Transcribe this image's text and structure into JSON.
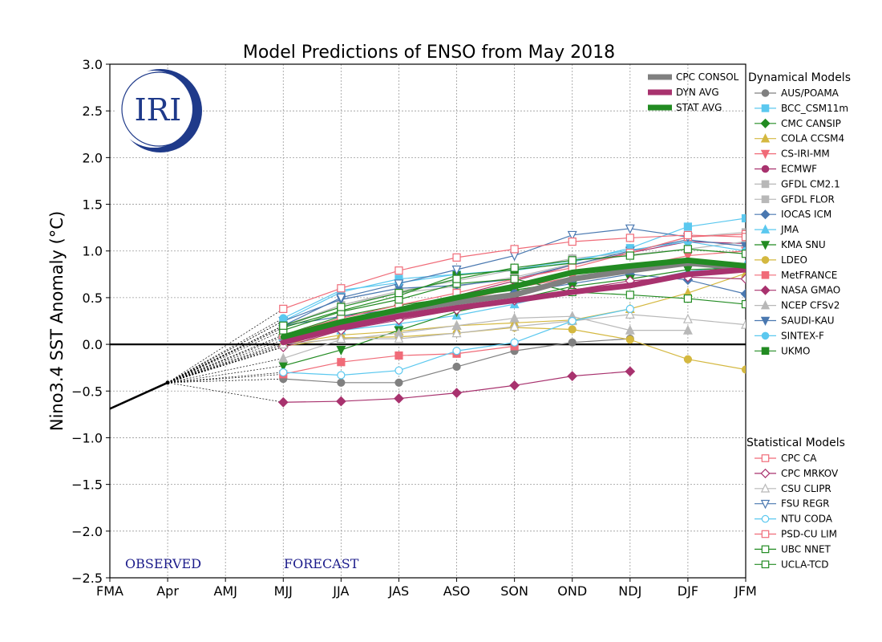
{
  "chart_data": {
    "type": "line",
    "title": "Model Predictions of ENSO from May 2018",
    "ylabel": "Nino3.4 SST Anomaly (°C)",
    "xlabel": "",
    "categories": [
      "FMA",
      "Apr",
      "AMJ",
      "MJJ",
      "JJA",
      "JAS",
      "ASO",
      "SON",
      "OND",
      "NDJ",
      "DJF",
      "JFM"
    ],
    "ylim": [
      -2.5,
      3.0
    ],
    "yticks": [
      "3.0",
      "2.5",
      "2.0",
      "1.5",
      "1.0",
      "0.5",
      "0.0",
      "−0.5",
      "−1.0",
      "−1.5",
      "−2.0",
      "−2.5"
    ],
    "ytick_values": [
      3.0,
      2.5,
      2.0,
      1.5,
      1.0,
      0.5,
      0.0,
      -0.5,
      -1.0,
      -1.5,
      -2.0,
      -2.5
    ],
    "grid": true,
    "observed": {
      "label": "OBSERVED",
      "x": [
        0,
        1
      ],
      "values": [
        -0.69,
        -0.41
      ]
    },
    "forecast_label": "FORECAST",
    "logo_text": "IRI",
    "averages_legend": [
      {
        "name": "CPC CONSOL",
        "color": "#808080",
        "width": 7,
        "start": 3,
        "values": [
          0.05,
          0.22,
          0.36,
          0.45,
          0.53,
          0.7,
          0.79,
          0.87,
          0.82
        ]
      },
      {
        "name": "DYN AVG",
        "color": "#a8326e",
        "width": 7,
        "start": 3,
        "values": [
          0.02,
          0.18,
          0.3,
          0.39,
          0.47,
          0.56,
          0.63,
          0.75,
          0.8
        ]
      },
      {
        "name": "STAT AVG",
        "color": "#228b22",
        "width": 7,
        "start": 3,
        "values": [
          0.08,
          0.24,
          0.37,
          0.5,
          0.62,
          0.77,
          0.84,
          0.9,
          0.84
        ]
      }
    ],
    "dynamical_header": "Dynamical Models",
    "dynamical": [
      {
        "name": "AUS/POAMA",
        "color": "#808080",
        "marker": "circle",
        "fill": true,
        "start": 3,
        "values": [
          -0.37,
          -0.41,
          -0.41,
          -0.24,
          -0.07,
          0.02,
          0.06,
          null,
          null
        ]
      },
      {
        "name": "BCC_CSM11m",
        "color": "#5bc8ef",
        "marker": "square",
        "fill": true,
        "start": 3,
        "values": [
          0.25,
          0.56,
          0.7,
          0.75,
          0.79,
          0.88,
          1.03,
          1.26,
          1.35
        ]
      },
      {
        "name": "CMC CANSIP",
        "color": "#228b22",
        "marker": "diamond",
        "fill": true,
        "start": 3,
        "values": [
          0.1,
          0.3,
          0.42,
          0.5,
          0.58,
          0.68,
          0.79,
          0.88,
          0.82
        ]
      },
      {
        "name": "COLA CCSM4",
        "color": "#d4b840",
        "marker": "triangle",
        "fill": true,
        "start": 3,
        "values": [
          0.0,
          0.1,
          0.14,
          0.2,
          0.23,
          0.26,
          0.38,
          0.55,
          0.76
        ]
      },
      {
        "name": "CS-IRI-MM",
        "color": "#f06b78",
        "marker": "tridown",
        "fill": true,
        "start": 3,
        "values": [
          0.02,
          0.2,
          0.33,
          0.46,
          0.6,
          0.72,
          0.82,
          0.95,
          1.0
        ]
      },
      {
        "name": "ECMWF",
        "color": "#a8326e",
        "marker": "circle",
        "fill": true,
        "start": 3,
        "values": [
          0.05,
          0.22,
          0.36,
          0.52,
          0.68,
          0.85,
          0.98,
          1.1,
          1.08
        ]
      },
      {
        "name": "GFDL CM2.1",
        "color": "#b8b8b8",
        "marker": "square",
        "fill": true,
        "start": 3,
        "values": [
          0.18,
          0.42,
          0.57,
          0.68,
          0.8,
          0.92,
          0.98,
          1.15,
          1.2
        ]
      },
      {
        "name": "GFDL FLOR",
        "color": "#b8b8b8",
        "marker": "square",
        "fill": true,
        "start": 3,
        "values": [
          0.2,
          0.42,
          0.55,
          0.62,
          0.72,
          0.86,
          0.96,
          1.02,
          1.1
        ]
      },
      {
        "name": "IOCAS ICM",
        "color": "#4a78b0",
        "marker": "diamond",
        "fill": true,
        "start": 3,
        "values": [
          0.2,
          0.3,
          0.38,
          0.45,
          0.55,
          0.65,
          0.75,
          0.69,
          0.54
        ]
      },
      {
        "name": "JMA",
        "color": "#5bc8ef",
        "marker": "triangle",
        "fill": true,
        "start": 3,
        "values": [
          0.08,
          0.15,
          0.22,
          0.31,
          0.43,
          0.58,
          0.65,
          0.78,
          0.85
        ]
      },
      {
        "name": "KMA SNU",
        "color": "#228b22",
        "marker": "tridown",
        "fill": true,
        "start": 3,
        "values": [
          -0.23,
          -0.06,
          0.15,
          0.35,
          0.48,
          0.62,
          0.7,
          0.8,
          0.82
        ]
      },
      {
        "name": "LDEO",
        "color": "#d4b840",
        "marker": "circle",
        "fill": true,
        "start": 3,
        "values": [
          -0.02,
          0.07,
          0.08,
          0.12,
          0.18,
          0.16,
          0.05,
          -0.16,
          -0.27
        ]
      },
      {
        "name": "MetFRANCE",
        "color": "#f06b78",
        "marker": "square",
        "fill": true,
        "start": 3,
        "values": [
          -0.32,
          -0.19,
          -0.12,
          -0.1,
          -0.02,
          null,
          null,
          null,
          null
        ]
      },
      {
        "name": "NASA GMAO",
        "color": "#a8326e",
        "marker": "diamond",
        "fill": true,
        "start": 3,
        "values": [
          -0.62,
          -0.61,
          -0.58,
          -0.52,
          -0.44,
          -0.34,
          -0.29,
          null,
          null
        ]
      },
      {
        "name": "NCEP CFSv2",
        "color": "#b8b8b8",
        "marker": "triangle",
        "fill": true,
        "start": 3,
        "values": [
          -0.15,
          0.05,
          0.12,
          0.2,
          0.28,
          0.3,
          0.15,
          0.15,
          null
        ]
      },
      {
        "name": "SAUDI-KAU",
        "color": "#4a78b0",
        "marker": "tridown",
        "fill": true,
        "start": 3,
        "values": [
          0.25,
          0.48,
          0.6,
          0.63,
          0.7,
          0.85,
          1.0,
          1.12,
          1.05
        ]
      },
      {
        "name": "SINTEX-F",
        "color": "#5bc8ef",
        "marker": "circle",
        "fill": true,
        "start": 3,
        "values": [
          0.28,
          0.58,
          0.66,
          0.75,
          0.8,
          0.9,
          1.01,
          1.1,
          1.0
        ]
      },
      {
        "name": "UKMO",
        "color": "#228b22",
        "marker": "square",
        "fill": true,
        "start": 3,
        "values": [
          0.18,
          0.36,
          0.52,
          0.74,
          0.8,
          0.87,
          null,
          null,
          null
        ]
      }
    ],
    "statistical_header": "Statistical Models",
    "statistical": [
      {
        "name": "CPC CA",
        "color": "#f06b78",
        "marker": "square",
        "fill": false,
        "start": 3,
        "values": [
          0.1,
          0.28,
          0.42,
          0.55,
          0.7,
          0.82,
          0.98,
          1.15,
          1.18
        ]
      },
      {
        "name": "CPC MRKOV",
        "color": "#a8326e",
        "marker": "diamond",
        "fill": false,
        "start": 3,
        "values": [
          -0.03,
          0.15,
          0.26,
          0.37,
          0.47,
          0.58,
          0.68,
          0.72,
          0.7
        ]
      },
      {
        "name": "CSU CLIPR",
        "color": "#b8b8b8",
        "marker": "triangle",
        "fill": false,
        "start": 3,
        "values": [
          0.0,
          0.06,
          0.06,
          0.12,
          0.19,
          0.25,
          0.32,
          0.27,
          0.21
        ]
      },
      {
        "name": "FSU REGR",
        "color": "#4a78b0",
        "marker": "tridown",
        "fill": false,
        "start": 3,
        "values": [
          0.2,
          0.5,
          0.65,
          0.8,
          0.95,
          1.17,
          1.24,
          1.15,
          null
        ]
      },
      {
        "name": "NTU CODA",
        "color": "#5bc8ef",
        "marker": "circle",
        "fill": false,
        "start": 3,
        "values": [
          -0.3,
          -0.33,
          -0.28,
          -0.07,
          0.02,
          0.25,
          0.38,
          null,
          null
        ]
      },
      {
        "name": "PSD-CU LIM",
        "color": "#f06b78",
        "marker": "square",
        "fill": false,
        "start": 3,
        "values": [
          0.38,
          0.6,
          0.79,
          0.93,
          1.02,
          1.1,
          1.14,
          1.17,
          1.15
        ]
      },
      {
        "name": "UBC NNET",
        "color": "#228b22",
        "marker": "square",
        "fill": false,
        "start": 3,
        "values": [
          0.15,
          0.35,
          0.48,
          0.65,
          0.7,
          0.56,
          0.53,
          0.49,
          0.43
        ]
      },
      {
        "name": "UCLA-TCD",
        "color": "#228b22",
        "marker": "square",
        "fill": false,
        "start": 3,
        "values": [
          0.2,
          0.4,
          0.55,
          0.7,
          0.82,
          0.9,
          0.95,
          1.02,
          0.97
        ]
      }
    ]
  }
}
